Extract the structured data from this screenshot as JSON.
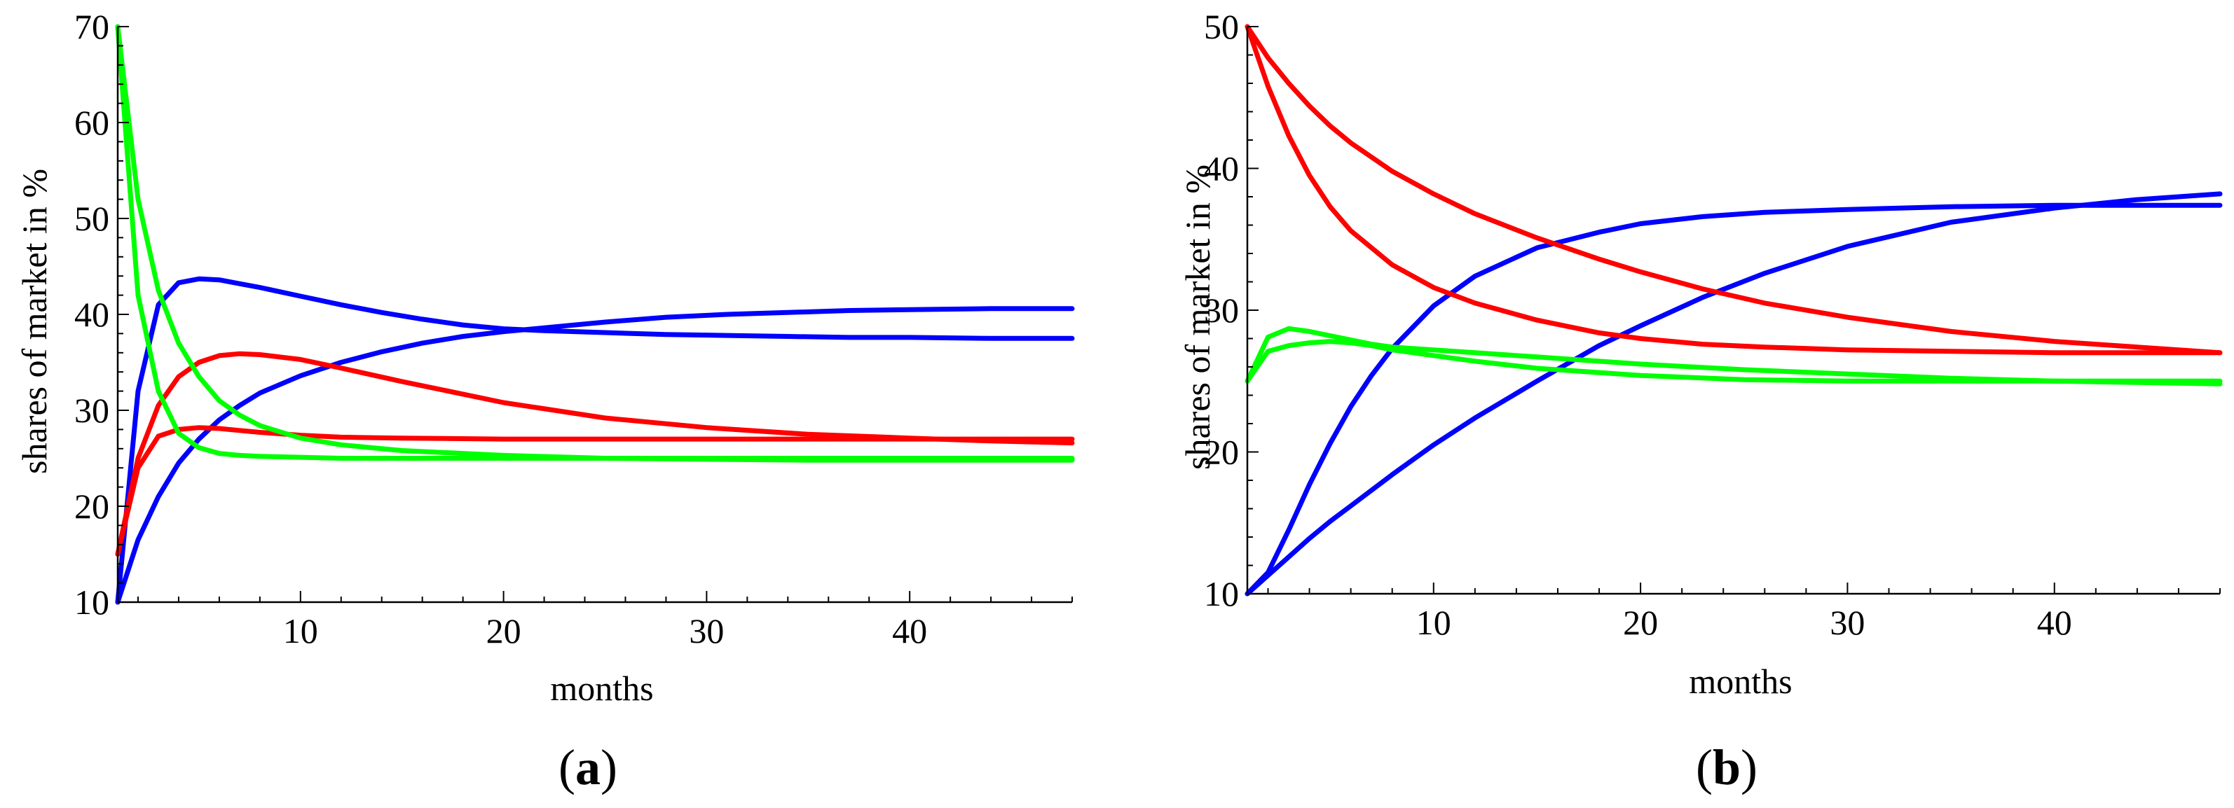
{
  "chart_data": [
    {
      "type": "line",
      "panel_label": "a",
      "xlabel": "months",
      "ylabel": "shares of market in %",
      "xlim": [
        1,
        48
      ],
      "ylim": [
        10,
        70
      ],
      "xticks": [
        10,
        20,
        30,
        40
      ],
      "yticks": [
        10,
        20,
        30,
        40,
        50,
        60,
        70
      ],
      "series": [
        {
          "name": "blue-1",
          "color": "#0000ff",
          "x": [
            1,
            2,
            3,
            4,
            5,
            6,
            7,
            8,
            10,
            12,
            14,
            16,
            18,
            20,
            22,
            25,
            28,
            31,
            34,
            37,
            40,
            44,
            48
          ],
          "y": [
            10,
            32,
            41,
            43.3,
            43.7,
            43.6,
            43.2,
            42.8,
            41.9,
            41.0,
            40.2,
            39.5,
            38.9,
            38.5,
            38.3,
            38.1,
            37.9,
            37.8,
            37.7,
            37.6,
            37.6,
            37.5,
            37.5
          ]
        },
        {
          "name": "blue-2",
          "color": "#0000ff",
          "x": [
            1,
            2,
            3,
            4,
            5,
            6,
            7,
            8,
            10,
            12,
            14,
            16,
            18,
            20,
            22,
            25,
            28,
            31,
            34,
            37,
            40,
            44,
            48
          ],
          "y": [
            10,
            16.5,
            21,
            24.5,
            27,
            29,
            30.5,
            31.8,
            33.6,
            35,
            36.1,
            37,
            37.7,
            38.2,
            38.6,
            39.2,
            39.7,
            40,
            40.2,
            40.4,
            40.5,
            40.6,
            40.6
          ]
        },
        {
          "name": "red-1",
          "color": "#ff0000",
          "x": [
            1,
            2,
            3,
            4,
            5,
            6,
            7,
            8,
            10,
            12,
            15,
            20,
            25,
            30,
            35,
            40,
            44,
            48
          ],
          "y": [
            15,
            25,
            30.5,
            33.5,
            35,
            35.7,
            35.9,
            35.8,
            35.3,
            34.4,
            33,
            30.8,
            29.2,
            28.2,
            27.5,
            27.1,
            26.8,
            26.6
          ]
        },
        {
          "name": "red-2",
          "color": "#ff0000",
          "x": [
            1,
            2,
            3,
            4,
            5,
            6,
            7,
            8,
            10,
            12,
            15,
            20,
            25,
            30,
            35,
            40,
            44,
            48
          ],
          "y": [
            15,
            24,
            27.3,
            28,
            28.2,
            28.1,
            27.9,
            27.7,
            27.4,
            27.2,
            27.1,
            27,
            27,
            27,
            27,
            27,
            27,
            27
          ]
        },
        {
          "name": "green-1",
          "color": "#00ff00",
          "x": [
            1,
            2,
            3,
            4,
            5,
            6,
            7,
            8,
            10,
            12,
            15,
            20,
            25,
            30,
            35,
            40,
            44,
            48
          ],
          "y": [
            70,
            42,
            32,
            27.6,
            26.1,
            25.5,
            25.3,
            25.2,
            25.1,
            25,
            25,
            25,
            25,
            25,
            25,
            25,
            25,
            25
          ]
        },
        {
          "name": "green-2",
          "color": "#00ff00",
          "x": [
            1,
            2,
            3,
            4,
            5,
            6,
            7,
            8,
            10,
            12,
            15,
            20,
            25,
            30,
            35,
            40,
            44,
            48
          ],
          "y": [
            70,
            52,
            42.5,
            37,
            33.5,
            31,
            29.5,
            28.4,
            27.1,
            26.4,
            25.8,
            25.3,
            25,
            24.9,
            24.8,
            24.8,
            24.8,
            24.8
          ]
        }
      ]
    },
    {
      "type": "line",
      "panel_label": "b",
      "xlabel": "months",
      "ylabel": "shares of market in %",
      "xlim": [
        1,
        48
      ],
      "ylim": [
        10,
        50
      ],
      "xticks": [
        10,
        20,
        30,
        40
      ],
      "yticks": [
        10,
        20,
        30,
        40,
        50
      ],
      "series": [
        {
          "name": "blue-1",
          "color": "#0000ff",
          "x": [
            1,
            2,
            3,
            4,
            5,
            6,
            7,
            8,
            10,
            12,
            15,
            18,
            20,
            23,
            26,
            30,
            35,
            40,
            44,
            48
          ],
          "y": [
            10,
            11.5,
            14.5,
            17.7,
            20.6,
            23.2,
            25.4,
            27.3,
            30.3,
            32.4,
            34.4,
            35.5,
            36.1,
            36.6,
            36.9,
            37.1,
            37.3,
            37.4,
            37.4,
            37.4
          ]
        },
        {
          "name": "blue-2",
          "color": "#0000ff",
          "x": [
            1,
            2,
            3,
            4,
            5,
            6,
            8,
            10,
            12,
            15,
            18,
            20,
            23,
            26,
            30,
            35,
            40,
            44,
            48
          ],
          "y": [
            10,
            11.3,
            12.6,
            13.9,
            15.1,
            16.2,
            18.4,
            20.5,
            22.4,
            25.0,
            27.5,
            28.9,
            30.9,
            32.6,
            34.5,
            36.2,
            37.2,
            37.8,
            38.2
          ]
        },
        {
          "name": "red-1",
          "color": "#ff0000",
          "x": [
            1,
            2,
            3,
            4,
            5,
            6,
            8,
            10,
            12,
            15,
            18,
            20,
            23,
            26,
            30,
            35,
            40,
            44,
            48
          ],
          "y": [
            50,
            45.8,
            42.3,
            39.5,
            37.3,
            35.6,
            33.2,
            31.6,
            30.5,
            29.3,
            28.4,
            28.0,
            27.6,
            27.4,
            27.2,
            27.1,
            27.0,
            27.0,
            27.0
          ]
        },
        {
          "name": "red-2",
          "color": "#ff0000",
          "x": [
            1,
            2,
            3,
            4,
            5,
            6,
            8,
            10,
            12,
            15,
            18,
            20,
            23,
            26,
            30,
            35,
            40,
            44,
            48
          ],
          "y": [
            50,
            47.8,
            46,
            44.4,
            43,
            41.8,
            39.8,
            38.2,
            36.8,
            35.1,
            33.6,
            32.7,
            31.5,
            30.5,
            29.5,
            28.5,
            27.8,
            27.4,
            27.0
          ]
        },
        {
          "name": "green-1",
          "color": "#00ff00",
          "x": [
            1,
            2,
            3,
            4,
            5,
            6,
            7,
            8,
            10,
            12,
            15,
            18,
            20,
            25,
            30,
            35,
            40,
            44,
            48
          ],
          "y": [
            25,
            27.1,
            27.5,
            27.7,
            27.8,
            27.7,
            27.5,
            27.2,
            26.8,
            26.4,
            25.9,
            25.6,
            25.4,
            25.1,
            25,
            25,
            25,
            25,
            25
          ]
        },
        {
          "name": "green-2",
          "color": "#00ff00",
          "x": [
            1,
            2,
            3,
            4,
            5,
            6,
            7,
            8,
            10,
            12,
            15,
            18,
            20,
            25,
            30,
            35,
            40,
            44,
            48
          ],
          "y": [
            25,
            28.1,
            28.7,
            28.5,
            28.2,
            27.9,
            27.6,
            27.4,
            27.2,
            27.0,
            26.7,
            26.4,
            26.2,
            25.8,
            25.5,
            25.2,
            25.0,
            24.9,
            24.8
          ]
        }
      ]
    }
  ]
}
